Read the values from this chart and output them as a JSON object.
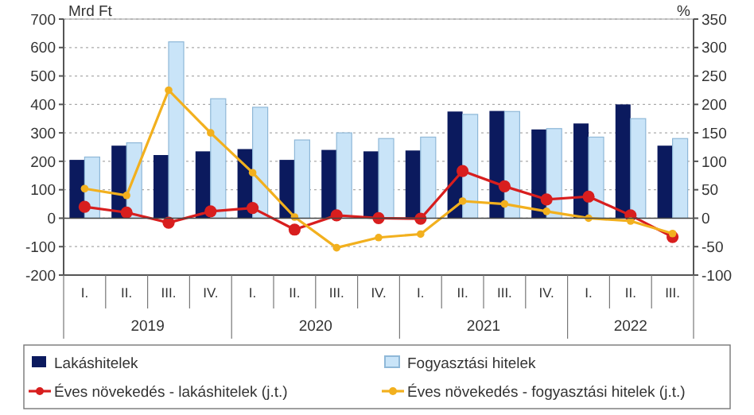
{
  "chart_data": {
    "type": "bar",
    "ylabel": "Mrd Ft",
    "y2label": "%",
    "categories": [
      "I.",
      "II.",
      "III.",
      "IV.",
      "I.",
      "II.",
      "III.",
      "IV.",
      "I.",
      "II.",
      "III.",
      "IV.",
      "I.",
      "II.",
      "III."
    ],
    "series": [
      {
        "name": "Lakáshitelek",
        "color": "#0b1a5e",
        "values": [
          205,
          255,
          222,
          235,
          243,
          205,
          240,
          235,
          238,
          375,
          377,
          312,
          333,
          400,
          255
        ]
      },
      {
        "name": "Fogyasztási hitelek",
        "color": "#c9e4f8",
        "values": [
          215,
          265,
          620,
          420,
          390,
          275,
          300,
          280,
          285,
          365,
          375,
          315,
          285,
          350,
          280
        ]
      },
      {
        "name": "Éves növekedés - lakáshitelek (j.t.)",
        "type": "line",
        "axis": "y2",
        "color": "#d81e1e",
        "values": [
          20,
          10,
          -8,
          12,
          18,
          -20,
          5,
          0,
          -1,
          83,
          56,
          33,
          38,
          5,
          -33
        ]
      },
      {
        "name": "Éves növekedés - fogyasztási hitelek (j.t.)",
        "type": "line",
        "axis": "y2",
        "color": "#f2b01e",
        "values": [
          52,
          40,
          225,
          150,
          80,
          2,
          -52,
          -34,
          -28,
          30,
          25,
          12,
          0,
          -5,
          -27
        ]
      }
    ],
    "ylim": [
      -200,
      700
    ],
    "yticks": [
      -200,
      -100,
      0,
      100,
      200,
      300,
      400,
      500,
      600,
      700
    ],
    "y2lim": [
      -100,
      350
    ],
    "y2ticks": [
      -100,
      -50,
      0,
      50,
      100,
      150,
      200,
      250,
      300,
      350
    ],
    "annotations": [
      "2019",
      "2020",
      "2021",
      "2022"
    ],
    "grid": "y",
    "legend": "bottom",
    "marker": "circle",
    "line_style": "solid"
  }
}
